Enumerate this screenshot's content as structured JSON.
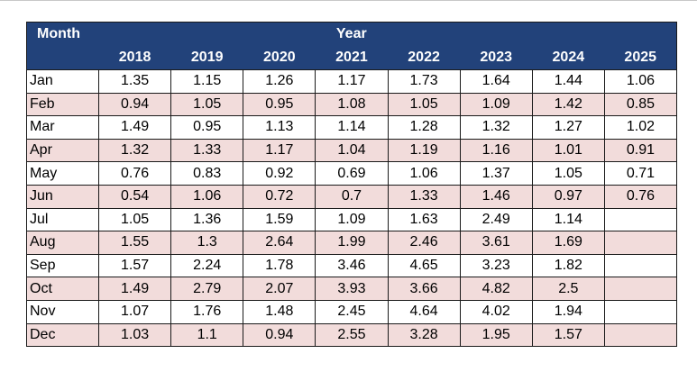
{
  "header": {
    "month_label": "Month",
    "year_label": "Year",
    "years": [
      "2018",
      "2019",
      "2020",
      "2021",
      "2022",
      "2023",
      "2024",
      "2025"
    ]
  },
  "rows": [
    {
      "month": "Jan",
      "values": [
        "1.35",
        "1.15",
        "1.26",
        "1.17",
        "1.73",
        "1.64",
        "1.44",
        "1.06"
      ]
    },
    {
      "month": "Feb",
      "values": [
        "0.94",
        "1.05",
        "0.95",
        "1.08",
        "1.05",
        "1.09",
        "1.42",
        "0.85"
      ]
    },
    {
      "month": "Mar",
      "values": [
        "1.49",
        "0.95",
        "1.13",
        "1.14",
        "1.28",
        "1.32",
        "1.27",
        "1.02"
      ]
    },
    {
      "month": "Apr",
      "values": [
        "1.32",
        "1.33",
        "1.17",
        "1.04",
        "1.19",
        "1.16",
        "1.01",
        "0.91"
      ]
    },
    {
      "month": "May",
      "values": [
        "0.76",
        "0.83",
        "0.92",
        "0.69",
        "1.06",
        "1.37",
        "1.05",
        "0.71"
      ]
    },
    {
      "month": "Jun",
      "values": [
        "0.54",
        "1.06",
        "0.72",
        "0.7",
        "1.33",
        "1.46",
        "0.97",
        "0.76"
      ]
    },
    {
      "month": "Jul",
      "values": [
        "1.05",
        "1.36",
        "1.59",
        "1.09",
        "1.63",
        "2.49",
        "1.14",
        ""
      ]
    },
    {
      "month": "Aug",
      "values": [
        "1.55",
        "1.3",
        "2.64",
        "1.99",
        "2.46",
        "3.61",
        "1.69",
        ""
      ]
    },
    {
      "month": "Sep",
      "values": [
        "1.57",
        "2.24",
        "1.78",
        "3.46",
        "4.65",
        "3.23",
        "1.82",
        ""
      ]
    },
    {
      "month": "Oct",
      "values": [
        "1.49",
        "2.79",
        "2.07",
        "3.93",
        "3.66",
        "4.82",
        "2.5",
        ""
      ]
    },
    {
      "month": "Nov",
      "values": [
        "1.07",
        "1.76",
        "1.48",
        "2.45",
        "4.64",
        "4.02",
        "1.94",
        ""
      ]
    },
    {
      "month": "Dec",
      "values": [
        "1.03",
        "1.1",
        "0.94",
        "2.55",
        "3.28",
        "1.95",
        "1.57",
        ""
      ]
    }
  ],
  "colors": {
    "header_bg": "#22427a",
    "header_text": "#ffffff",
    "stripe_bg": "#f2dcdb",
    "row_bg": "#ffffff"
  }
}
